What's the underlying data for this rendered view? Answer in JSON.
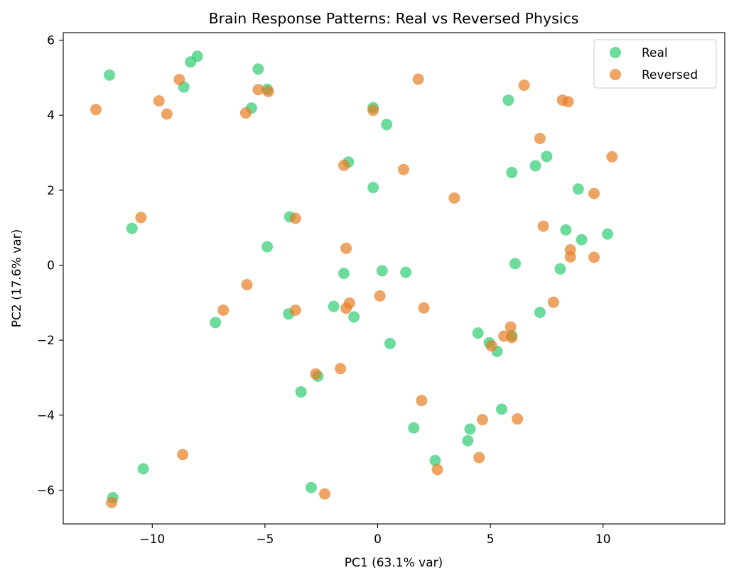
{
  "chart_data": {
    "type": "scatter",
    "title": "Brain Response Patterns: Real vs Reversed Physics",
    "xlabel": "PC1 (63.1% var)",
    "ylabel": "PC2 (17.6% var)",
    "xlim": [
      -13.95,
      15.4
    ],
    "ylim": [
      -6.9,
      6.2
    ],
    "xticks": [
      -10,
      -5,
      0,
      5,
      10
    ],
    "yticks": [
      -6,
      -4,
      -2,
      0,
      2,
      4,
      6
    ],
    "xtick_labels": [
      "−10",
      "−5",
      "0",
      "5",
      "10"
    ],
    "ytick_labels": [
      "−6",
      "−4",
      "−2",
      "0",
      "2",
      "4",
      "6"
    ],
    "grid": false,
    "legend_position": "top-right",
    "series": [
      {
        "name": "Real",
        "color": "#2ecc71",
        "points": [
          [
            -11.9,
            5.07
          ],
          [
            -8.3,
            5.42
          ],
          [
            -8.0,
            5.57
          ],
          [
            -8.6,
            4.75
          ],
          [
            -5.3,
            5.23
          ],
          [
            -4.9,
            4.69
          ],
          [
            -5.6,
            4.19
          ],
          [
            -0.2,
            4.2
          ],
          [
            0.4,
            3.75
          ],
          [
            5.8,
            4.4
          ],
          [
            -1.3,
            2.75
          ],
          [
            -0.2,
            2.07
          ],
          [
            5.95,
            2.47
          ],
          [
            7.0,
            2.65
          ],
          [
            7.5,
            2.9
          ],
          [
            8.9,
            2.03
          ],
          [
            8.35,
            0.94
          ],
          [
            9.05,
            0.68
          ],
          [
            10.2,
            0.83
          ],
          [
            6.1,
            0.04
          ],
          [
            8.1,
            -0.1
          ],
          [
            -10.9,
            0.98
          ],
          [
            -3.9,
            1.29
          ],
          [
            -4.9,
            0.49
          ],
          [
            -1.5,
            -0.22
          ],
          [
            0.2,
            -0.15
          ],
          [
            1.25,
            -0.19
          ],
          [
            -3.95,
            -1.3
          ],
          [
            -1.95,
            -1.1
          ],
          [
            -1.05,
            -1.38
          ],
          [
            -7.2,
            -1.53
          ],
          [
            0.55,
            -2.09
          ],
          [
            4.45,
            -1.81
          ],
          [
            4.95,
            -2.07
          ],
          [
            5.3,
            -2.3
          ],
          [
            5.95,
            -1.88
          ],
          [
            7.2,
            -1.26
          ],
          [
            -3.4,
            -3.38
          ],
          [
            -2.65,
            -2.96
          ],
          [
            1.6,
            -4.34
          ],
          [
            4.1,
            -4.37
          ],
          [
            4.0,
            -4.68
          ],
          [
            5.5,
            -3.84
          ],
          [
            2.55,
            -5.21
          ],
          [
            -10.4,
            -5.43
          ],
          [
            -11.75,
            -6.2
          ],
          [
            -2.95,
            -5.93
          ]
        ]
      },
      {
        "name": "Reversed",
        "color": "#e67e22",
        "points": [
          [
            -12.5,
            4.15
          ],
          [
            -8.8,
            4.95
          ],
          [
            -9.7,
            4.38
          ],
          [
            -9.35,
            4.03
          ],
          [
            -5.3,
            4.68
          ],
          [
            -4.85,
            4.63
          ],
          [
            -5.85,
            4.06
          ],
          [
            -0.2,
            4.13
          ],
          [
            1.8,
            4.96
          ],
          [
            6.5,
            4.8
          ],
          [
            8.2,
            4.4
          ],
          [
            8.45,
            4.36
          ],
          [
            7.2,
            3.38
          ],
          [
            10.4,
            2.89
          ],
          [
            -1.5,
            2.66
          ],
          [
            1.15,
            2.55
          ],
          [
            3.4,
            1.79
          ],
          [
            9.6,
            1.91
          ],
          [
            7.35,
            1.04
          ],
          [
            8.55,
            0.41
          ],
          [
            8.55,
            0.22
          ],
          [
            9.6,
            0.21
          ],
          [
            -10.5,
            1.27
          ],
          [
            -3.65,
            1.25
          ],
          [
            -1.4,
            0.45
          ],
          [
            -5.8,
            -0.52
          ],
          [
            -6.85,
            -1.2
          ],
          [
            -3.65,
            -1.2
          ],
          [
            -1.25,
            -1.01
          ],
          [
            -1.4,
            -1.15
          ],
          [
            0.1,
            -0.82
          ],
          [
            2.05,
            -1.14
          ],
          [
            7.8,
            -0.99
          ],
          [
            5.9,
            -1.65
          ],
          [
            5.6,
            -1.89
          ],
          [
            5.95,
            -1.93
          ],
          [
            5.05,
            -2.15
          ],
          [
            -2.75,
            -2.9
          ],
          [
            -1.65,
            -2.76
          ],
          [
            1.95,
            -3.61
          ],
          [
            4.65,
            -4.12
          ],
          [
            6.2,
            -4.1
          ],
          [
            4.5,
            -5.13
          ],
          [
            2.65,
            -5.45
          ],
          [
            -8.65,
            -5.05
          ],
          [
            -11.8,
            -6.33
          ],
          [
            -2.35,
            -6.1
          ]
        ]
      }
    ]
  }
}
